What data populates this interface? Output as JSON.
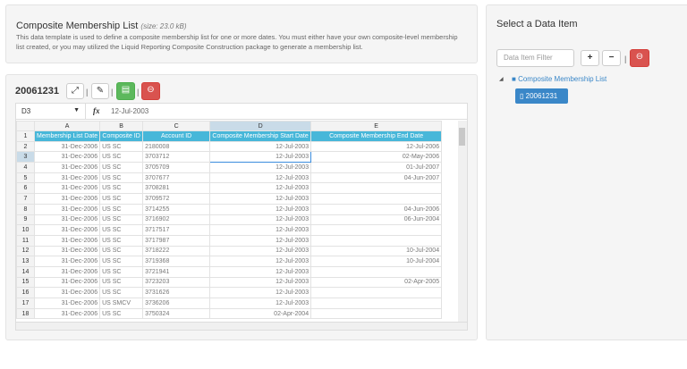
{
  "template": {
    "title": "Composite Membership List",
    "size": "(size: 23.0 kB)",
    "description": "This data template is used to define a composite membership list for one or more dates. You must either have your own composite-level membership list created, or you may utilized the Liquid Reporting Composite Construction package to generate a membership list."
  },
  "sheet": {
    "name": "20061231",
    "cell_ref": "D3",
    "fx": "fx",
    "formula_value": "12-Jul-2003",
    "columns": [
      "A",
      "B",
      "C",
      "D",
      "E"
    ],
    "headers": [
      "Membership List Date",
      "Composite ID",
      "Account ID",
      "Composite Membership Start Date",
      "Composite Membership End Date"
    ],
    "rows": [
      [
        "31-Dec-2006",
        "US SC",
        "2180008",
        "12-Jul-2003",
        "12-Jul-2006"
      ],
      [
        "31-Dec-2006",
        "US SC",
        "3703712",
        "12-Jul-2003",
        "02-May-2006"
      ],
      [
        "31-Dec-2006",
        "US SC",
        "3705709",
        "12-Jul-2003",
        "01-Jul-2007"
      ],
      [
        "31-Dec-2006",
        "US SC",
        "3707677",
        "12-Jul-2003",
        "04-Jun-2007"
      ],
      [
        "31-Dec-2006",
        "US SC",
        "3708281",
        "12-Jul-2003",
        ""
      ],
      [
        "31-Dec-2006",
        "US SC",
        "3709572",
        "12-Jul-2003",
        ""
      ],
      [
        "31-Dec-2006",
        "US SC",
        "3714255",
        "12-Jul-2003",
        "04-Jun-2006"
      ],
      [
        "31-Dec-2006",
        "US SC",
        "3716902",
        "12-Jul-2003",
        "06-Jun-2004"
      ],
      [
        "31-Dec-2006",
        "US SC",
        "3717517",
        "12-Jul-2003",
        ""
      ],
      [
        "31-Dec-2006",
        "US SC",
        "3717987",
        "12-Jul-2003",
        ""
      ],
      [
        "31-Dec-2006",
        "US SC",
        "3718222",
        "12-Jul-2003",
        "10-Jul-2004"
      ],
      [
        "31-Dec-2006",
        "US SC",
        "3719368",
        "12-Jul-2003",
        "10-Jul-2004"
      ],
      [
        "31-Dec-2006",
        "US SC",
        "3721941",
        "12-Jul-2003",
        ""
      ],
      [
        "31-Dec-2006",
        "US SC",
        "3723203",
        "12-Jul-2003",
        "02-Apr-2005"
      ],
      [
        "31-Dec-2006",
        "US SC",
        "3731626",
        "12-Jul-2003",
        ""
      ],
      [
        "31-Dec-2006",
        "US SMCV",
        "3736206",
        "12-Jul-2003",
        ""
      ],
      [
        "31-Dec-2006",
        "US SC",
        "3750324",
        "02-Apr-2004",
        ""
      ]
    ]
  },
  "sidebar": {
    "title": "Select a Data Item",
    "filter_placeholder": "Data Item Filter",
    "tree_root": "Composite Membership List",
    "tree_leaf": "20061231"
  },
  "colors": {
    "header": "#47b7d9",
    "accent": "#3a87c8",
    "danger": "#d9534f",
    "success": "#5cb85c"
  }
}
